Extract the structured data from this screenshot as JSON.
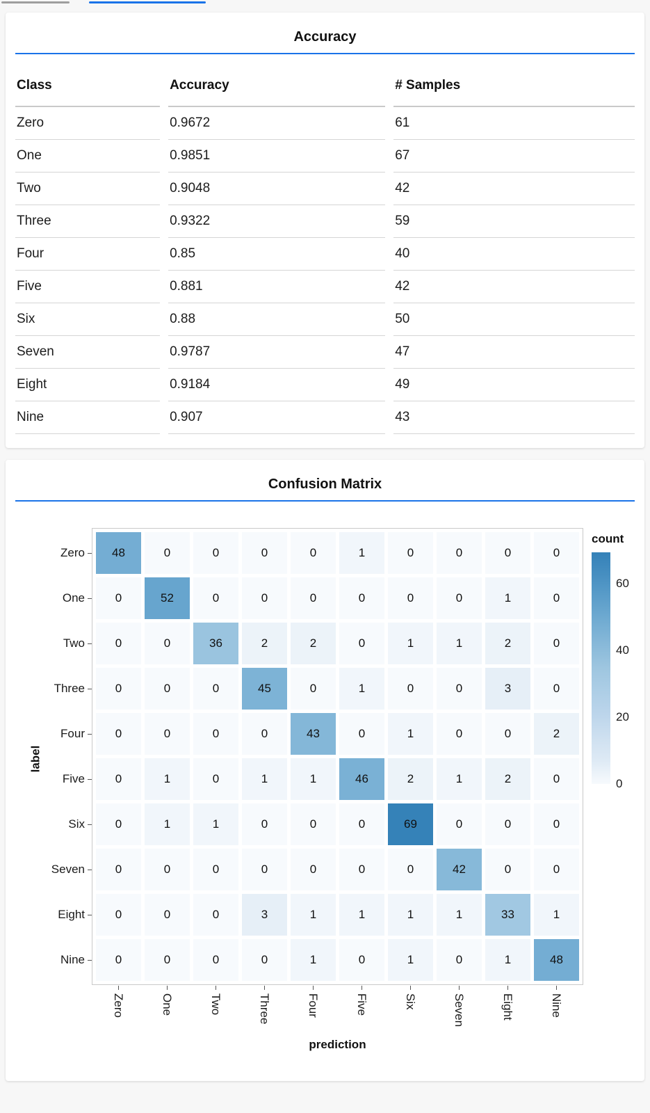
{
  "page": {
    "background": "#f7f7f7",
    "accent_blue": "#1a73e8",
    "top_gray_bar_color": "#9e9e9e"
  },
  "accuracy_panel": {
    "title": "Accuracy",
    "columns": [
      "Class",
      "Accuracy",
      "# Samples"
    ],
    "rows": [
      [
        "Zero",
        "0.9672",
        "61"
      ],
      [
        "One",
        "0.9851",
        "67"
      ],
      [
        "Two",
        "0.9048",
        "42"
      ],
      [
        "Three",
        "0.9322",
        "59"
      ],
      [
        "Four",
        "0.85",
        "40"
      ],
      [
        "Five",
        "0.881",
        "42"
      ],
      [
        "Six",
        "0.88",
        "50"
      ],
      [
        "Seven",
        "0.9787",
        "47"
      ],
      [
        "Eight",
        "0.9184",
        "49"
      ],
      [
        "Nine",
        "0.907",
        "43"
      ]
    ]
  },
  "confusion_panel": {
    "title": "Confusion Matrix",
    "x_axis_title": "prediction",
    "y_axis_title": "label",
    "legend_title": "count",
    "legend_tick_values": [
      60,
      40,
      20,
      0
    ],
    "legend_max": 69.3,
    "classes": [
      "Zero",
      "One",
      "Two",
      "Three",
      "Four",
      "Five",
      "Six",
      "Seven",
      "Eight",
      "Nine"
    ],
    "matrix": [
      [
        48,
        0,
        0,
        0,
        0,
        1,
        0,
        0,
        0,
        0
      ],
      [
        0,
        52,
        0,
        0,
        0,
        0,
        0,
        0,
        1,
        0
      ],
      [
        0,
        0,
        36,
        2,
        2,
        0,
        1,
        1,
        2,
        0
      ],
      [
        0,
        0,
        0,
        45,
        0,
        1,
        0,
        0,
        3,
        0
      ],
      [
        0,
        0,
        0,
        0,
        43,
        0,
        1,
        0,
        0,
        2
      ],
      [
        0,
        1,
        0,
        1,
        1,
        46,
        2,
        1,
        2,
        0
      ],
      [
        0,
        1,
        1,
        0,
        0,
        0,
        69,
        0,
        0,
        0
      ],
      [
        0,
        0,
        0,
        0,
        0,
        0,
        0,
        42,
        0,
        0
      ],
      [
        0,
        0,
        0,
        3,
        1,
        1,
        1,
        1,
        33,
        1
      ],
      [
        0,
        0,
        0,
        0,
        1,
        0,
        1,
        0,
        1,
        48
      ]
    ],
    "heat_color_stops": [
      [
        0,
        "#f7fafd"
      ],
      [
        3,
        "#e6eff7"
      ],
      [
        10,
        "#d8e6f3"
      ],
      [
        20,
        "#bed6ec"
      ],
      [
        35,
        "#9dc6e0"
      ],
      [
        48,
        "#74add3"
      ],
      [
        60,
        "#4d94c4"
      ],
      [
        70,
        "#3280b7"
      ]
    ]
  },
  "chart_data": [
    {
      "type": "table",
      "title": "Accuracy",
      "columns": [
        "Class",
        "Accuracy",
        "# Samples"
      ],
      "rows": [
        [
          "Zero",
          0.9672,
          61
        ],
        [
          "One",
          0.9851,
          67
        ],
        [
          "Two",
          0.9048,
          42
        ],
        [
          "Three",
          0.9322,
          59
        ],
        [
          "Four",
          0.85,
          40
        ],
        [
          "Five",
          0.881,
          42
        ],
        [
          "Six",
          0.88,
          50
        ],
        [
          "Seven",
          0.9787,
          47
        ],
        [
          "Eight",
          0.9184,
          49
        ],
        [
          "Nine",
          0.907,
          43
        ]
      ]
    },
    {
      "type": "heatmap",
      "title": "Confusion Matrix",
      "xlabel": "prediction",
      "ylabel": "label",
      "legend_title": "count",
      "legend_ticks": [
        0,
        20,
        40,
        60
      ],
      "x_categories": [
        "Zero",
        "One",
        "Two",
        "Three",
        "Four",
        "Five",
        "Six",
        "Seven",
        "Eight",
        "Nine"
      ],
      "y_categories": [
        "Zero",
        "One",
        "Two",
        "Three",
        "Four",
        "Five",
        "Six",
        "Seven",
        "Eight",
        "Nine"
      ],
      "values": [
        [
          48,
          0,
          0,
          0,
          0,
          1,
          0,
          0,
          0,
          0
        ],
        [
          0,
          52,
          0,
          0,
          0,
          0,
          0,
          0,
          1,
          0
        ],
        [
          0,
          0,
          36,
          2,
          2,
          0,
          1,
          1,
          2,
          0
        ],
        [
          0,
          0,
          0,
          45,
          0,
          1,
          0,
          0,
          3,
          0
        ],
        [
          0,
          0,
          0,
          0,
          43,
          0,
          1,
          0,
          0,
          2
        ],
        [
          0,
          1,
          0,
          1,
          1,
          46,
          2,
          1,
          2,
          0
        ],
        [
          0,
          1,
          1,
          0,
          0,
          0,
          69,
          0,
          0,
          0
        ],
        [
          0,
          0,
          0,
          0,
          0,
          0,
          0,
          42,
          0,
          0
        ],
        [
          0,
          0,
          0,
          3,
          1,
          1,
          1,
          1,
          33,
          1
        ],
        [
          0,
          0,
          0,
          0,
          1,
          0,
          1,
          0,
          1,
          48
        ]
      ],
      "color_range": [
        "#f7fafd",
        "#3280b7"
      ],
      "grid": false,
      "legend_position": "right"
    }
  ]
}
